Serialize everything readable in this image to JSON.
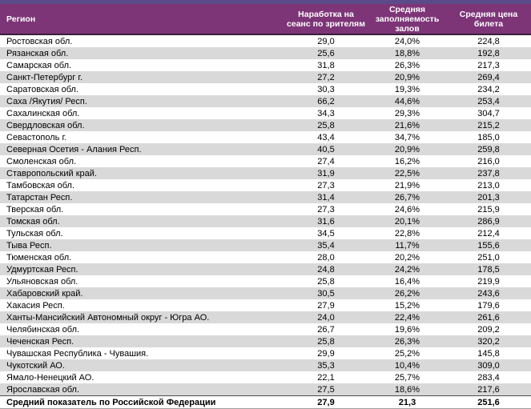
{
  "colors": {
    "top_band": "#5C4B8A",
    "header_bg": "#7D3577",
    "header_text": "#FFFFFF",
    "header_border": "#3A1F3D",
    "stripe": "#D9D9D9",
    "row_text": "#000000",
    "footer_border": "#4D4D4D",
    "bottom_border": "#9E9E9E"
  },
  "chart_data": {
    "type": "table",
    "title": "",
    "columns": [
      "Регион",
      "Наработка на сеанс по зрителям",
      "Средняя заполняемость залов",
      "Средняя цена билета"
    ],
    "rows": [
      {
        "region": "Ростовская обл.",
        "viewers_per_session": "29,0",
        "occupancy": "24,0%",
        "avg_ticket_price": "224,8"
      },
      {
        "region": "Рязанская обл.",
        "viewers_per_session": "25,6",
        "occupancy": "18,8%",
        "avg_ticket_price": "192,8"
      },
      {
        "region": "Самарская обл.",
        "viewers_per_session": "31,8",
        "occupancy": "26,3%",
        "avg_ticket_price": "217,3"
      },
      {
        "region": "Санкт-Петербург г.",
        "viewers_per_session": "27,2",
        "occupancy": "20,9%",
        "avg_ticket_price": "269,4"
      },
      {
        "region": "Саратовская обл.",
        "viewers_per_session": "30,3",
        "occupancy": "19,3%",
        "avg_ticket_price": "234,2"
      },
      {
        "region": "Саха /Якутия/ Респ.",
        "viewers_per_session": "66,2",
        "occupancy": "44,6%",
        "avg_ticket_price": "253,4"
      },
      {
        "region": "Сахалинская обл.",
        "viewers_per_session": "34,3",
        "occupancy": "29,3%",
        "avg_ticket_price": "304,7"
      },
      {
        "region": "Свердловская обл.",
        "viewers_per_session": "25,8",
        "occupancy": "21,6%",
        "avg_ticket_price": "215,2"
      },
      {
        "region": "Севастополь г.",
        "viewers_per_session": "43,4",
        "occupancy": "34,7%",
        "avg_ticket_price": "185,0"
      },
      {
        "region": "Северная Осетия - Алания Респ.",
        "viewers_per_session": "40,5",
        "occupancy": "20,9%",
        "avg_ticket_price": "259,8"
      },
      {
        "region": "Смоленская обл.",
        "viewers_per_session": "27,4",
        "occupancy": "16,2%",
        "avg_ticket_price": "216,0"
      },
      {
        "region": "Ставропольский край.",
        "viewers_per_session": "31,9",
        "occupancy": "22,5%",
        "avg_ticket_price": "237,8"
      },
      {
        "region": "Тамбовская обл.",
        "viewers_per_session": "27,3",
        "occupancy": "21,9%",
        "avg_ticket_price": "213,0"
      },
      {
        "region": "Татарстан Респ.",
        "viewers_per_session": "31,4",
        "occupancy": "26,7%",
        "avg_ticket_price": "201,3"
      },
      {
        "region": "Тверская обл.",
        "viewers_per_session": "27,3",
        "occupancy": "24,6%",
        "avg_ticket_price": "215,9"
      },
      {
        "region": "Томская обл.",
        "viewers_per_session": "31,6",
        "occupancy": "20,1%",
        "avg_ticket_price": "286,9"
      },
      {
        "region": "Тульская обл.",
        "viewers_per_session": "34,5",
        "occupancy": "22,8%",
        "avg_ticket_price": "212,4"
      },
      {
        "region": "Тыва Респ.",
        "viewers_per_session": "35,4",
        "occupancy": "11,7%",
        "avg_ticket_price": "155,6"
      },
      {
        "region": "Тюменская обл.",
        "viewers_per_session": "28,0",
        "occupancy": "20,2%",
        "avg_ticket_price": "251,0"
      },
      {
        "region": "Удмуртская Респ.",
        "viewers_per_session": "24,8",
        "occupancy": "24,2%",
        "avg_ticket_price": "178,5"
      },
      {
        "region": "Ульяновская обл.",
        "viewers_per_session": "25,8",
        "occupancy": "16,4%",
        "avg_ticket_price": "219,9"
      },
      {
        "region": "Хабаровский край.",
        "viewers_per_session": "30,5",
        "occupancy": "26,2%",
        "avg_ticket_price": "243,6"
      },
      {
        "region": "Хакасия Респ.",
        "viewers_per_session": "27,9",
        "occupancy": "15,2%",
        "avg_ticket_price": "179,6"
      },
      {
        "region": "Ханты-Мансийский Автономный округ - Югра АО.",
        "viewers_per_session": "24,0",
        "occupancy": "22,4%",
        "avg_ticket_price": "261,6"
      },
      {
        "region": "Челябинская обл.",
        "viewers_per_session": "26,7",
        "occupancy": "19,6%",
        "avg_ticket_price": "209,2"
      },
      {
        "region": "Чеченская Респ.",
        "viewers_per_session": "25,8",
        "occupancy": "26,3%",
        "avg_ticket_price": "320,2"
      },
      {
        "region": "Чувашская Республика - Чувашия.",
        "viewers_per_session": "29,9",
        "occupancy": "25,2%",
        "avg_ticket_price": "145,8"
      },
      {
        "region": "Чукотский АО.",
        "viewers_per_session": "35,3",
        "occupancy": "10,4%",
        "avg_ticket_price": "309,0"
      },
      {
        "region": "Ямало-Ненецкий АО.",
        "viewers_per_session": "22,1",
        "occupancy": "25,7%",
        "avg_ticket_price": "283,4"
      },
      {
        "region": "Ярославская обл.",
        "viewers_per_session": "27,5",
        "occupancy": "18,6%",
        "avg_ticket_price": "217,6"
      }
    ],
    "footer": {
      "region": "Средний показатель по Российской Федерации",
      "viewers_per_session": "27,9",
      "occupancy": "21,3",
      "avg_ticket_price": "251,6"
    }
  }
}
